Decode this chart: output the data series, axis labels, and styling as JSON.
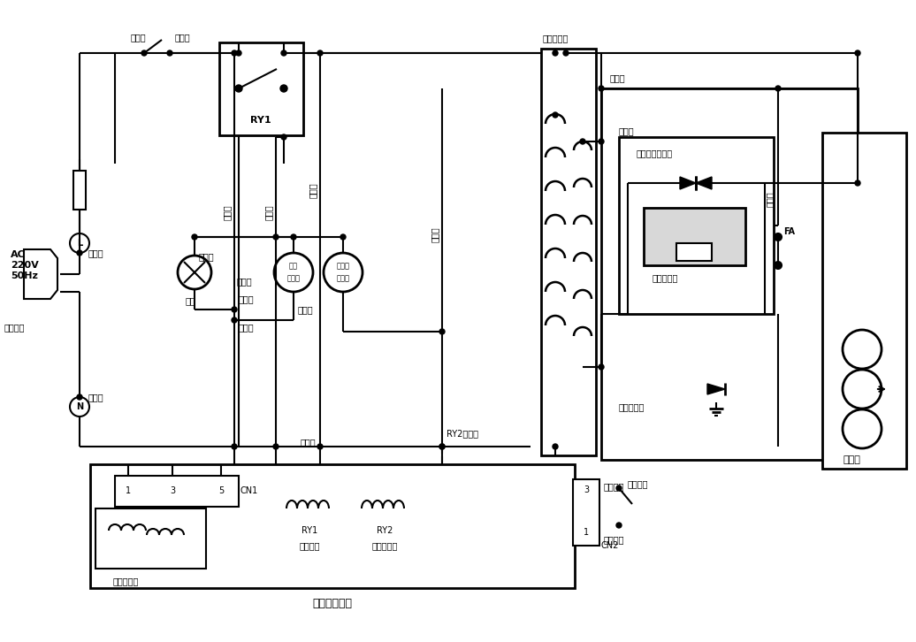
{
  "background": "#ffffff",
  "line_color": "#000000",
  "fig_width": 10.36,
  "fig_height": 7.26,
  "bottom_label": "电脑控制电路",
  "labels": {
    "ac": "AC\n220V\n50Hz",
    "huang_lv": "黄绿色线",
    "hei_se": "黑色线",
    "hong_se_top": "红色线",
    "hong_se_mid": "红色线",
    "hong_vertical": "红色线",
    "bai_se_mid": "白色线",
    "bai_se_right": "白色线",
    "huang_se": "黄色线",
    "hei_vertical": "黑色线",
    "hong_vertical2": "红色线",
    "zong_se": "棕色线",
    "lan_se1": "蓝色线",
    "lan_se2": "蓝色线",
    "lan_se3": "蓝色线",
    "lan_se4": "蓝色线",
    "bai_se_bottom": "白色线",
    "bai_se_bottom2": "白色线",
    "lu_deng": "炉灯",
    "zhuan_pan": "转盘电动机",
    "feng_shan": "电风扇电动机",
    "ry1_label": "RY1",
    "ry2_label": "RY2",
    "cn1_label": "CN1",
    "cn2_label": "CN2",
    "gao_ya_bianyaqi": "高压变压器",
    "zhu_jidianqi": "主继电器",
    "dian_yuan_jidianqi": "电源继电器",
    "di_ya_bianyaqi": "低压变压器",
    "gao_ya_dianlu_baohuqi": "高压电路保护器",
    "gao_ya_dianronqi": "高压电容器",
    "gao_ya_erjieguan": "高压二极管",
    "ci_kong_guan": "磁控管",
    "men_lian_kaiguan": "门联开关",
    "fen_hong": "粉红色线",
    "fen_hong2": "粉红色线",
    "ry2bai": "RY2白色线",
    "fa_label": "FA",
    "hong_right_vert": "红色线",
    "hong_se_right": "红色线"
  }
}
